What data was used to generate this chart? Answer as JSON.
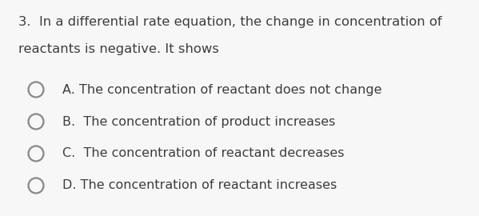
{
  "background_color": "#f7f7f7",
  "question_line1": "3.  In a differential rate equation, the change in concentration of",
  "question_line2": "reactants is negative. It shows",
  "options": [
    "A. The concentration of reactant does not change",
    "B.  The concentration of product increases",
    "C.  The concentration of reactant decreases",
    "D. The concentration of reactant increases"
  ],
  "text_color": "#3d3d3d",
  "circle_edge_color": "#888888",
  "font_size_question": 11.8,
  "font_size_options": 11.5,
  "fig_width": 5.99,
  "fig_height": 2.7,
  "dpi": 100
}
